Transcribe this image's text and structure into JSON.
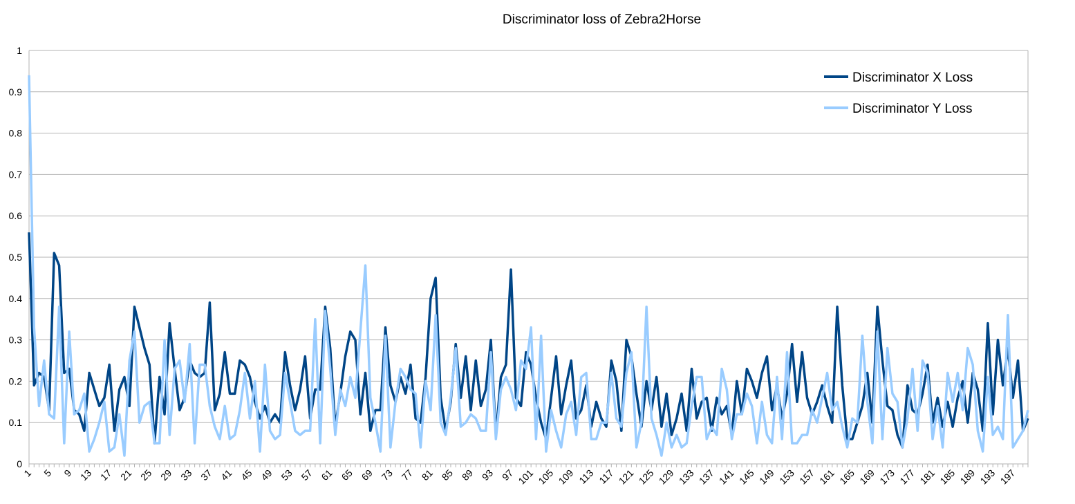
{
  "chart_data": {
    "type": "line",
    "title": "Discriminator loss of Zebra2Horse",
    "xlabel": "",
    "ylabel": "",
    "ylim": [
      0,
      1
    ],
    "yticks": [
      "0",
      "0.1",
      "0.2",
      "0.3",
      "0.4",
      "0.5",
      "0.6",
      "0.7",
      "0.8",
      "0.9",
      "1"
    ],
    "x_start": 1,
    "x_end": 200,
    "x_tick_labels": [
      1,
      5,
      9,
      13,
      17,
      21,
      25,
      29,
      33,
      37,
      41,
      45,
      49,
      53,
      57,
      61,
      65,
      69,
      73,
      77,
      81,
      85,
      89,
      93,
      97,
      101,
      105,
      109,
      113,
      117,
      121,
      125,
      129,
      133,
      137,
      141,
      145,
      149,
      153,
      157,
      161,
      165,
      169,
      173,
      177,
      181,
      185,
      189,
      193,
      197
    ],
    "grid": true,
    "legend_position": "top-right",
    "series": [
      {
        "name": "Discriminator X Loss",
        "color": "#004586",
        "values": [
          0.56,
          0.19,
          0.22,
          0.21,
          0.13,
          0.51,
          0.48,
          0.22,
          0.23,
          0.13,
          0.12,
          0.08,
          0.22,
          0.18,
          0.14,
          0.16,
          0.24,
          0.08,
          0.18,
          0.21,
          0.14,
          0.38,
          0.33,
          0.28,
          0.24,
          0.05,
          0.21,
          0.12,
          0.34,
          0.23,
          0.13,
          0.16,
          0.25,
          0.22,
          0.21,
          0.22,
          0.39,
          0.13,
          0.17,
          0.27,
          0.17,
          0.17,
          0.25,
          0.24,
          0.21,
          0.15,
          0.11,
          0.14,
          0.1,
          0.12,
          0.1,
          0.27,
          0.19,
          0.13,
          0.18,
          0.26,
          0.11,
          0.18,
          0.18,
          0.38,
          0.28,
          0.09,
          0.17,
          0.26,
          0.32,
          0.3,
          0.12,
          0.22,
          0.08,
          0.13,
          0.13,
          0.33,
          0.19,
          0.15,
          0.21,
          0.17,
          0.24,
          0.11,
          0.1,
          0.21,
          0.4,
          0.45,
          0.16,
          0.08,
          0.15,
          0.29,
          0.16,
          0.26,
          0.13,
          0.25,
          0.14,
          0.18,
          0.3,
          0.07,
          0.21,
          0.24,
          0.47,
          0.16,
          0.14,
          0.27,
          0.24,
          0.16,
          0.1,
          0.06,
          0.16,
          0.26,
          0.12,
          0.19,
          0.25,
          0.11,
          0.13,
          0.19,
          0.09,
          0.15,
          0.11,
          0.09,
          0.25,
          0.2,
          0.08,
          0.3,
          0.26,
          0.17,
          0.09,
          0.2,
          0.13,
          0.21,
          0.09,
          0.17,
          0.07,
          0.11,
          0.17,
          0.08,
          0.23,
          0.11,
          0.15,
          0.16,
          0.08,
          0.16,
          0.12,
          0.14,
          0.07,
          0.2,
          0.12,
          0.23,
          0.2,
          0.16,
          0.22,
          0.26,
          0.13,
          0.19,
          0.11,
          0.17,
          0.29,
          0.15,
          0.27,
          0.16,
          0.12,
          0.15,
          0.19,
          0.14,
          0.1,
          0.38,
          0.19,
          0.06,
          0.06,
          0.1,
          0.14,
          0.22,
          0.1,
          0.38,
          0.25,
          0.14,
          0.13,
          0.07,
          0.04,
          0.19,
          0.13,
          0.12,
          0.17,
          0.24,
          0.1,
          0.16,
          0.09,
          0.15,
          0.09,
          0.16,
          0.2,
          0.1,
          0.22,
          0.18,
          0.08,
          0.34,
          0.12,
          0.3,
          0.19,
          0.28,
          0.16,
          0.25,
          0.08,
          0.11
        ]
      },
      {
        "name": "Discriminator Y Loss",
        "color": "#99ccff",
        "values": [
          0.94,
          0.33,
          0.14,
          0.25,
          0.12,
          0.11,
          0.38,
          0.05,
          0.32,
          0.12,
          0.13,
          0.17,
          0.03,
          0.06,
          0.1,
          0.15,
          0.03,
          0.04,
          0.12,
          0.02,
          0.25,
          0.32,
          0.1,
          0.14,
          0.15,
          0.05,
          0.05,
          0.3,
          0.07,
          0.23,
          0.25,
          0.15,
          0.29,
          0.05,
          0.24,
          0.24,
          0.14,
          0.09,
          0.06,
          0.14,
          0.06,
          0.07,
          0.13,
          0.22,
          0.11,
          0.2,
          0.03,
          0.24,
          0.08,
          0.06,
          0.07,
          0.22,
          0.15,
          0.08,
          0.07,
          0.08,
          0.08,
          0.35,
          0.05,
          0.37,
          0.23,
          0.07,
          0.18,
          0.14,
          0.21,
          0.16,
          0.32,
          0.48,
          0.16,
          0.1,
          0.03,
          0.31,
          0.04,
          0.15,
          0.23,
          0.21,
          0.18,
          0.17,
          0.04,
          0.2,
          0.13,
          0.36,
          0.1,
          0.07,
          0.16,
          0.28,
          0.09,
          0.1,
          0.12,
          0.11,
          0.08,
          0.08,
          0.27,
          0.06,
          0.18,
          0.21,
          0.18,
          0.13,
          0.25,
          0.23,
          0.33,
          0.06,
          0.31,
          0.03,
          0.13,
          0.08,
          0.04,
          0.12,
          0.15,
          0.07,
          0.21,
          0.22,
          0.06,
          0.06,
          0.1,
          0.1,
          0.22,
          0.11,
          0.09,
          0.22,
          0.27,
          0.04,
          0.1,
          0.38,
          0.11,
          0.07,
          0.02,
          0.1,
          0.04,
          0.07,
          0.04,
          0.05,
          0.14,
          0.21,
          0.21,
          0.06,
          0.09,
          0.07,
          0.23,
          0.18,
          0.06,
          0.12,
          0.12,
          0.17,
          0.14,
          0.05,
          0.15,
          0.07,
          0.05,
          0.21,
          0.06,
          0.27,
          0.05,
          0.05,
          0.07,
          0.07,
          0.13,
          0.1,
          0.16,
          0.22,
          0.13,
          0.15,
          0.09,
          0.04,
          0.11,
          0.1,
          0.31,
          0.15,
          0.05,
          0.32,
          0.06,
          0.28,
          0.17,
          0.15,
          0.04,
          0.11,
          0.23,
          0.08,
          0.25,
          0.22,
          0.06,
          0.14,
          0.04,
          0.22,
          0.15,
          0.22,
          0.13,
          0.28,
          0.24,
          0.08,
          0.03,
          0.21,
          0.07,
          0.09,
          0.06,
          0.36,
          0.04,
          0.06,
          0.08,
          0.13
        ]
      }
    ]
  }
}
